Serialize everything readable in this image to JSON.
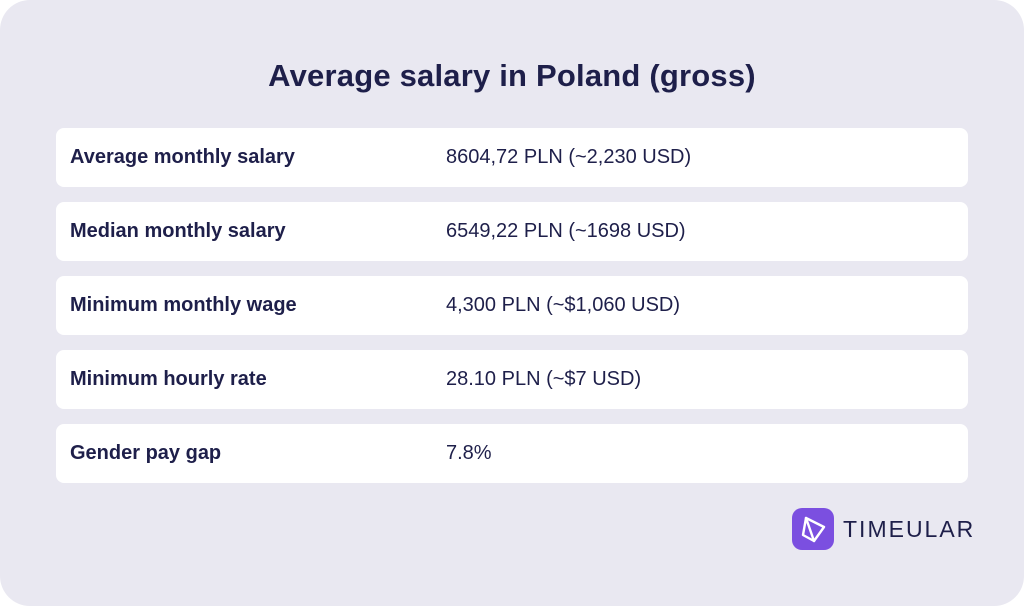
{
  "title": "Average salary in Poland (gross)",
  "rows": [
    {
      "label": "Average monthly salary",
      "value": "8604,72 PLN (~2,230 USD)"
    },
    {
      "label": "Median monthly salary",
      "value": "6549,22 PLN (~1698 USD)"
    },
    {
      "label": "Minimum monthly wage",
      "value": "4,300 PLN (~$1,060 USD)"
    },
    {
      "label": "Minimum hourly rate",
      "value": "28.10 PLN (~$7 USD)"
    },
    {
      "label": "Gender pay gap",
      "value": "7.8%"
    }
  ],
  "brand": {
    "name": "TIMEULAR",
    "icon": "timeular-logo-icon",
    "accent_color": "#7b4fe0"
  },
  "colors": {
    "background": "#e9e8f1",
    "row_background": "#ffffff",
    "text": "#1e1f4a"
  }
}
